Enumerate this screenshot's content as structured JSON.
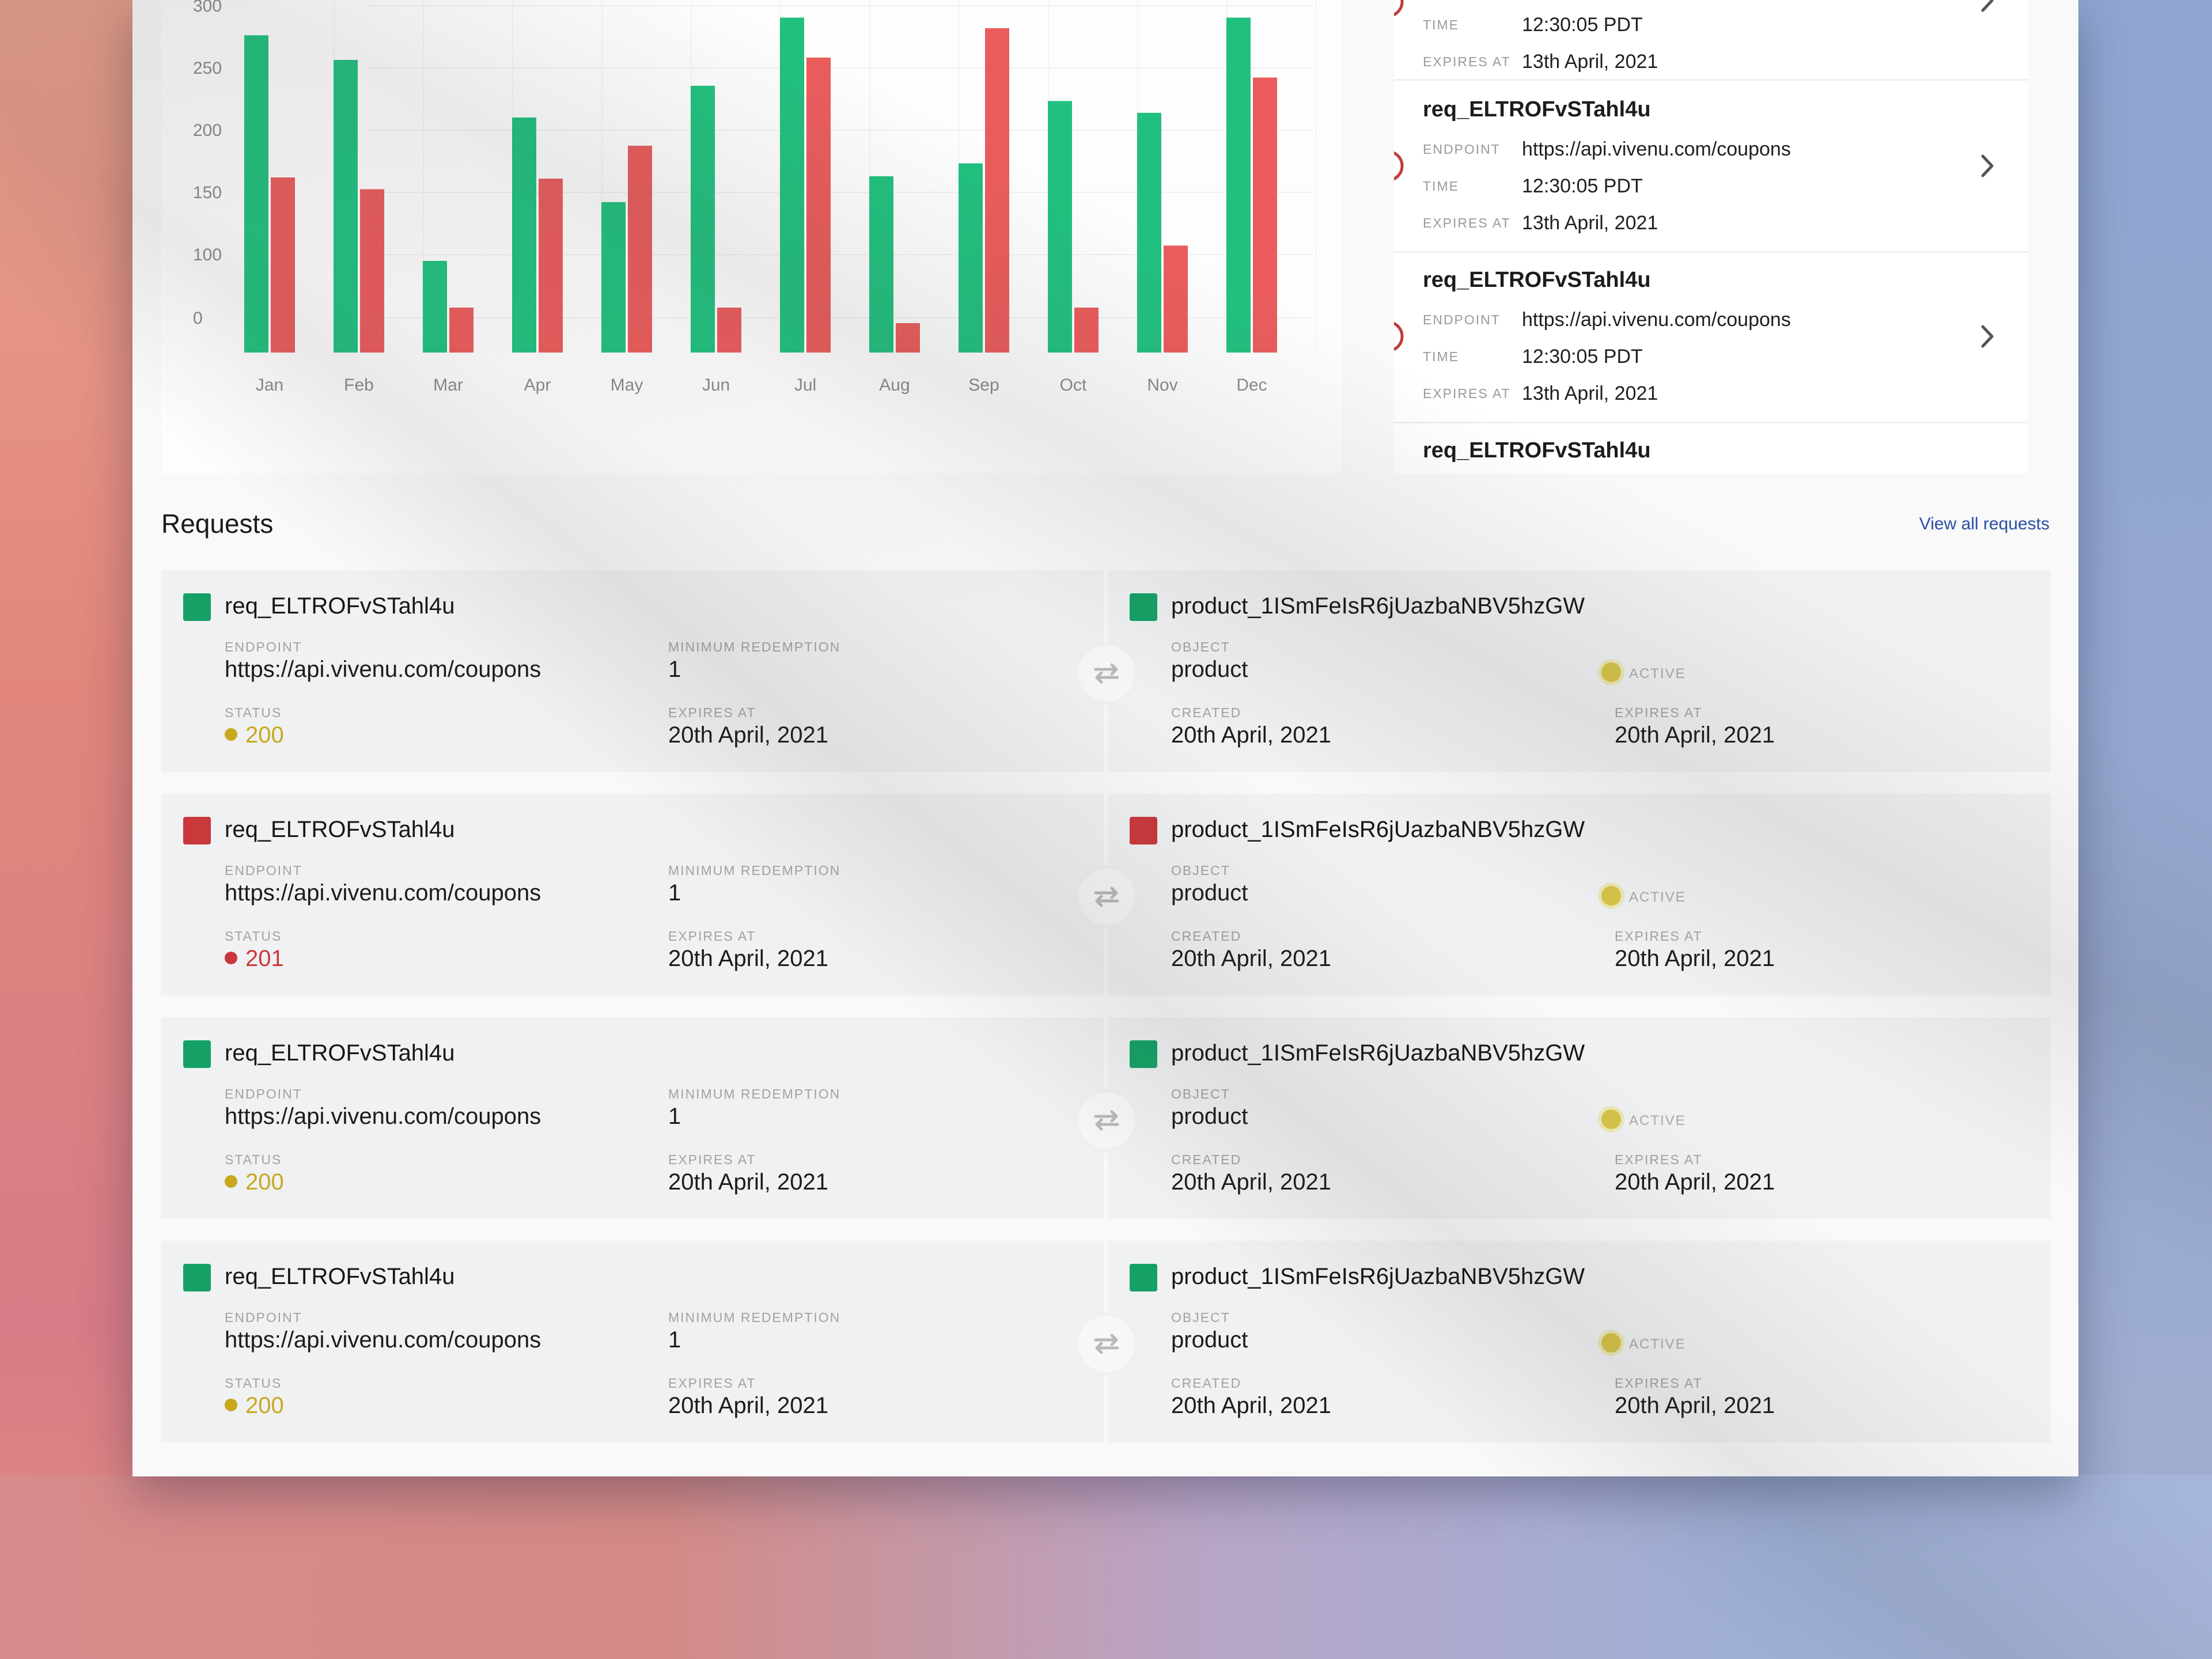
{
  "chart_data": {
    "type": "bar",
    "categories": [
      "Jan",
      "Feb",
      "Mar",
      "Apr",
      "May",
      "Jun",
      "Jul",
      "Aug",
      "Sep",
      "Oct",
      "Nov",
      "Dec"
    ],
    "series": [
      {
        "values": [
          270,
          249,
          78,
          200,
          128,
          227,
          285,
          150,
          161,
          214,
          204,
          285
        ],
        "color": "#22c07f"
      },
      {
        "values": [
          149,
          139,
          0,
          148,
          176,
          0,
          251,
          25,
          276,
          0,
          91,
          234
        ],
        "color": "#ea5c5c"
      }
    ],
    "y_ticks": [
      "300",
      "250",
      "200",
      "150",
      "100",
      "0"
    ],
    "ylim": [
      0,
      300
    ],
    "grid": true
  },
  "side_panel": {
    "items": [
      {
        "title": "",
        "endpoint_label": "",
        "endpoint": "",
        "time_label": "TIME",
        "time": "12:30:05 PDT",
        "expires_label": "EXPIRES AT",
        "expires": "13th April, 2021"
      },
      {
        "title": "req_ELTROFvSTahl4u",
        "endpoint_label": "ENDPOINT",
        "endpoint": "https://api.vivenu.com/coupons",
        "time_label": "TIME",
        "time": "12:30:05 PDT",
        "expires_label": "EXPIRES AT",
        "expires": "13th April, 2021"
      },
      {
        "title": "req_ELTROFvSTahl4u",
        "endpoint_label": "ENDPOINT",
        "endpoint": "https://api.vivenu.com/coupons",
        "time_label": "TIME",
        "time": "12:30:05 PDT",
        "expires_label": "EXPIRES AT",
        "expires": "13th April, 2021"
      },
      {
        "title": "req_ELTROFvSTahl4u"
      }
    ]
  },
  "requests": {
    "heading": "Requests",
    "view_all": "View all requests",
    "rows": [
      {
        "status_color": "green",
        "req_id": "req_ELTROFvSTahl4u",
        "endpoint_label": "ENDPOINT",
        "endpoint": "https://api.vivenu.com/coupons",
        "min_label": "MINIMUM REDEMPTION",
        "min": "1",
        "status_label": "STATUS",
        "status": "200",
        "status_hex": "#c8a91d",
        "expires_label": "EXPIRES AT",
        "expires": "20th April, 2021",
        "product_id": "product_1ISmFeIsR6jUazbaNBV5hzGW",
        "object_label": "OBJECT",
        "object": "product",
        "active_label": "ACTIVE",
        "created_label": "CREATED",
        "created": "20th April, 2021",
        "p_expires_label": "EXPIRES AT",
        "p_expires": "20th April, 2021"
      },
      {
        "status_color": "red",
        "req_id": "req_ELTROFvSTahl4u",
        "endpoint_label": "ENDPOINT",
        "endpoint": "https://api.vivenu.com/coupons",
        "min_label": "MINIMUM REDEMPTION",
        "min": "1",
        "status_label": "STATUS",
        "status": "201",
        "status_hex": "#c9383b",
        "expires_label": "EXPIRES AT",
        "expires": "20th April, 2021",
        "product_id": "product_1ISmFeIsR6jUazbaNBV5hzGW",
        "object_label": "OBJECT",
        "object": "product",
        "active_label": "ACTIVE",
        "created_label": "CREATED",
        "created": "20th April, 2021",
        "p_expires_label": "EXPIRES AT",
        "p_expires": "20th April, 2021"
      },
      {
        "status_color": "green",
        "req_id": "req_ELTROFvSTahl4u",
        "endpoint_label": "ENDPOINT",
        "endpoint": "https://api.vivenu.com/coupons",
        "min_label": "MINIMUM REDEMPTION",
        "min": "1",
        "status_label": "STATUS",
        "status": "200",
        "status_hex": "#c8a91d",
        "expires_label": "EXPIRES AT",
        "expires": "20th April, 2021",
        "product_id": "product_1ISmFeIsR6jUazbaNBV5hzGW",
        "object_label": "OBJECT",
        "object": "product",
        "active_label": "ACTIVE",
        "created_label": "CREATED",
        "created": "20th April, 2021",
        "p_expires_label": "EXPIRES AT",
        "p_expires": "20th April, 2021"
      },
      {
        "status_color": "green",
        "req_id": "req_ELTROFvSTahl4u",
        "endpoint_label": "ENDPOINT",
        "endpoint": "https://api.vivenu.com/coupons",
        "min_label": "MINIMUM REDEMPTION",
        "min": "1",
        "status_label": "STATUS",
        "status": "200",
        "status_hex": "#c8a91d",
        "expires_label": "EXPIRES AT",
        "expires": "20th April, 2021",
        "product_id": "product_1ISmFeIsR6jUazbaNBV5hzGW",
        "object_label": "OBJECT",
        "object": "product",
        "active_label": "ACTIVE",
        "created_label": "CREATED",
        "created": "20th April, 2021",
        "p_expires_label": "EXPIRES AT",
        "p_expires": "20th April, 2021"
      }
    ]
  },
  "icons": {
    "info": "info-circle-icon",
    "chevron": "chevron-right-icon",
    "swap": "swap-arrows-icon"
  }
}
